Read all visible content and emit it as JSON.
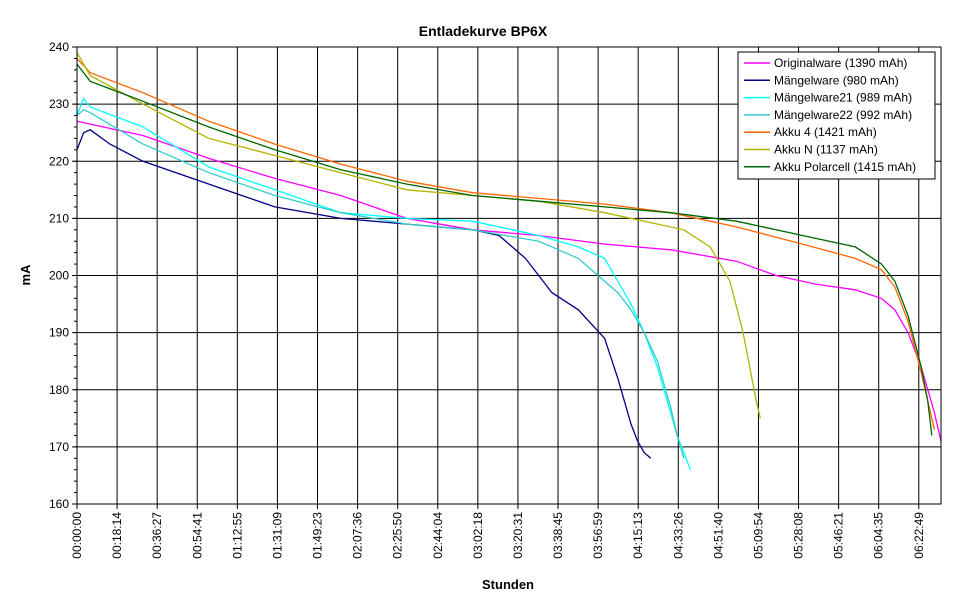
{
  "chart_data": {
    "type": "line",
    "title": "Entladekurve BP6X",
    "xlabel": "Stunden",
    "ylabel": "mA",
    "ylim": [
      160,
      240
    ],
    "y_ticks": [
      160,
      170,
      180,
      190,
      200,
      210,
      220,
      230,
      240
    ],
    "x_tick_labels": [
      "00:00:00",
      "00:18:14",
      "00:36:27",
      "00:54:41",
      "01:12:55",
      "01:31:09",
      "01:49:23",
      "02:07:36",
      "02:25:50",
      "02:44:04",
      "03:02:18",
      "03:20:31",
      "03:38:45",
      "03:56:59",
      "04:15:13",
      "04:33:26",
      "04:51:40",
      "05:09:54",
      "05:28:08",
      "05:46:21",
      "06:04:35",
      "06:22:49"
    ],
    "x_unit": "hours",
    "xlim": [
      0,
      6.55
    ],
    "grid": true,
    "legend_position": "top-right",
    "series": [
      {
        "name": "Originalware (1390 mAh)",
        "color": "#ff00ff",
        "x": [
          0,
          0.5,
          1,
          1.5,
          2,
          2.5,
          3,
          3.5,
          4,
          4.5,
          5,
          5.3,
          5.6,
          5.9,
          6.1,
          6.2,
          6.3,
          6.4,
          6.5,
          6.55
        ],
        "y": [
          227,
          224.5,
          220.5,
          217,
          214,
          210,
          208,
          207,
          205.5,
          204.5,
          202.5,
          200,
          198.5,
          197.5,
          196,
          194,
          190,
          184,
          176,
          171
        ]
      },
      {
        "name": "Mängelware (980 mAh)",
        "color": "#000080",
        "x": [
          0,
          0.05,
          0.1,
          0.25,
          0.5,
          1,
          1.5,
          2,
          2.5,
          3,
          3.2,
          3.4,
          3.6,
          3.8,
          4,
          4.1,
          4.15,
          4.2,
          4.25,
          4.3,
          4.35
        ],
        "y": [
          222,
          225,
          225.5,
          223,
          220,
          216,
          212,
          210,
          209,
          208,
          207,
          203,
          197,
          194,
          189,
          182,
          178,
          174,
          171,
          169,
          168
        ]
      },
      {
        "name": "Mängelware21 (989 mAh)",
        "color": "#00ffff",
        "x": [
          0,
          0.05,
          0.1,
          0.5,
          1,
          1.5,
          2,
          2.5,
          3,
          3.5,
          3.8,
          4,
          4.1,
          4.2,
          4.3,
          4.4,
          4.5,
          4.55,
          4.6,
          4.65
        ],
        "y": [
          228,
          231,
          229.5,
          226,
          219,
          215,
          211,
          210,
          209.5,
          207,
          205,
          203,
          199,
          195,
          190,
          184,
          176,
          172,
          169,
          166
        ]
      },
      {
        "name": "Mängelware22 (992 mAh)",
        "color": "#33cccc",
        "x": [
          0,
          0.05,
          0.1,
          0.5,
          1,
          1.5,
          2,
          2.5,
          3,
          3.5,
          3.8,
          4,
          4.1,
          4.2,
          4.3,
          4.4,
          4.5,
          4.55,
          4.6
        ],
        "y": [
          228,
          229,
          228.5,
          223,
          218,
          214,
          211,
          209,
          208,
          206,
          203,
          199,
          197,
          194,
          190,
          185,
          177,
          172,
          168
        ]
      },
      {
        "name": "Akku 4 (1421 mAh)",
        "color": "#ff6600",
        "x": [
          0,
          0.1,
          0.5,
          1,
          1.5,
          2,
          2.5,
          3,
          3.5,
          4,
          4.5,
          5,
          5.5,
          5.9,
          6.1,
          6.2,
          6.3,
          6.4,
          6.45,
          6.5
        ],
        "y": [
          238,
          235.5,
          232,
          227,
          223,
          219.5,
          216.5,
          214.5,
          213.5,
          212.5,
          211,
          208.5,
          205.5,
          203,
          201,
          198,
          192,
          183,
          178,
          173
        ]
      },
      {
        "name": "Akku N (1137 mAh)",
        "color": "#b3b300",
        "x": [
          0,
          0.1,
          0.5,
          1,
          1.5,
          2,
          2.5,
          3,
          3.5,
          4,
          4.3,
          4.6,
          4.8,
          4.95,
          5.05,
          5.1,
          5.15,
          5.18
        ],
        "y": [
          239,
          235,
          230,
          224,
          221,
          218,
          215,
          214,
          213,
          211,
          209.5,
          208,
          205,
          199,
          190,
          184,
          178,
          175
        ]
      },
      {
        "name": "Akku Polarcell (1415 mAh)",
        "color": "#006600",
        "x": [
          0,
          0.1,
          0.5,
          1,
          1.5,
          2,
          2.5,
          3,
          3.5,
          4,
          4.5,
          5,
          5.5,
          5.9,
          6.1,
          6.2,
          6.3,
          6.4,
          6.45,
          6.48
        ],
        "y": [
          237,
          234,
          230.5,
          226,
          222,
          218.5,
          216,
          214,
          213,
          212,
          211,
          209.5,
          207,
          205,
          202,
          199,
          193,
          184,
          178,
          172
        ]
      }
    ]
  }
}
